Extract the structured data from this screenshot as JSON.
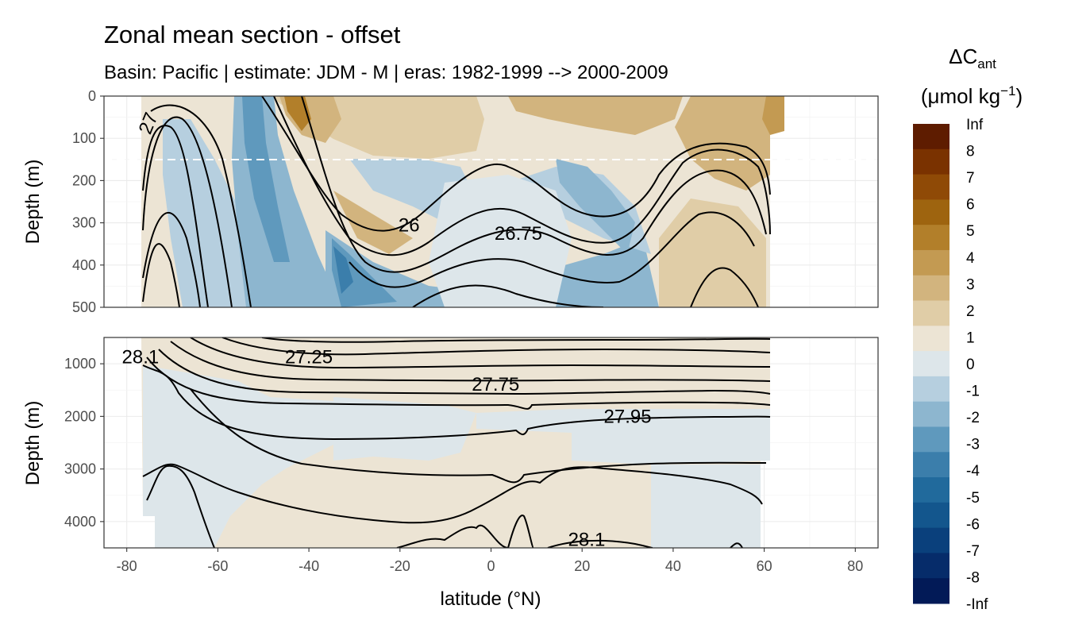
{
  "chart_data": {
    "type": "heatmap",
    "title": "Zonal mean section - offset",
    "subtitle": "Basin: Pacific | estimate: JDM - M | eras: 1982-1999 --> 2000-2009",
    "xlabel": "latitude (°N)",
    "x_ticks": [
      "-80",
      "-60",
      "-40",
      "-20",
      "0",
      "20",
      "40",
      "60",
      "80"
    ],
    "xlim": [
      -85,
      85
    ],
    "panels": [
      {
        "name": "upper",
        "ylabel": "Depth (m)",
        "y_ticks": [
          "0",
          "100",
          "200",
          "300",
          "400",
          "500"
        ],
        "ylim": [
          500,
          0
        ],
        "dashed_line_depth": 150,
        "isopycnal_labels": [
          {
            "text": "26",
            "lat": -18,
            "depth": 305
          },
          {
            "text": "26.75",
            "lat": 6,
            "depth": 325
          },
          {
            "text": "27",
            "lat": -74,
            "depth": 55
          }
        ]
      },
      {
        "name": "lower",
        "ylabel": "Depth (m)",
        "y_ticks": [
          "1000",
          "2000",
          "3000",
          "4000"
        ],
        "ylim": [
          4500,
          500
        ],
        "isopycnal_labels": [
          {
            "text": "28.1",
            "lat": -77,
            "depth": 870
          },
          {
            "text": "27.25",
            "lat": -40,
            "depth": 870
          },
          {
            "text": "27.75",
            "lat": 1,
            "depth": 1390
          },
          {
            "text": "27.95",
            "lat": 30,
            "depth": 2000
          },
          {
            "text": "28.1",
            "lat": 21,
            "depth": 4340
          }
        ]
      }
    ],
    "legend": {
      "title": "ΔC",
      "title_subscript": "ant",
      "unit_prefix": "(μmol kg",
      "unit_exponent": "−1",
      "unit_suffix": ")",
      "labels": [
        "Inf",
        "8",
        "7",
        "6",
        "5",
        "4",
        "3",
        "2",
        "1",
        "0",
        "-1",
        "-2",
        "-3",
        "-4",
        "-5",
        "-6",
        "-7",
        "-8",
        "-Inf"
      ],
      "colors": [
        "#5e1c00",
        "#7a3200",
        "#8f4a06",
        "#9e640f",
        "#b27f2a",
        "#c39a52",
        "#d2b47e",
        "#e0cda7",
        "#ece4d4",
        "#dde6ea",
        "#b6cfdf",
        "#8db6cf",
        "#5f99bd",
        "#3b7eab",
        "#216a9c",
        "#13568d",
        "#0a407c",
        "#062c6a",
        "#021a57"
      ]
    }
  }
}
